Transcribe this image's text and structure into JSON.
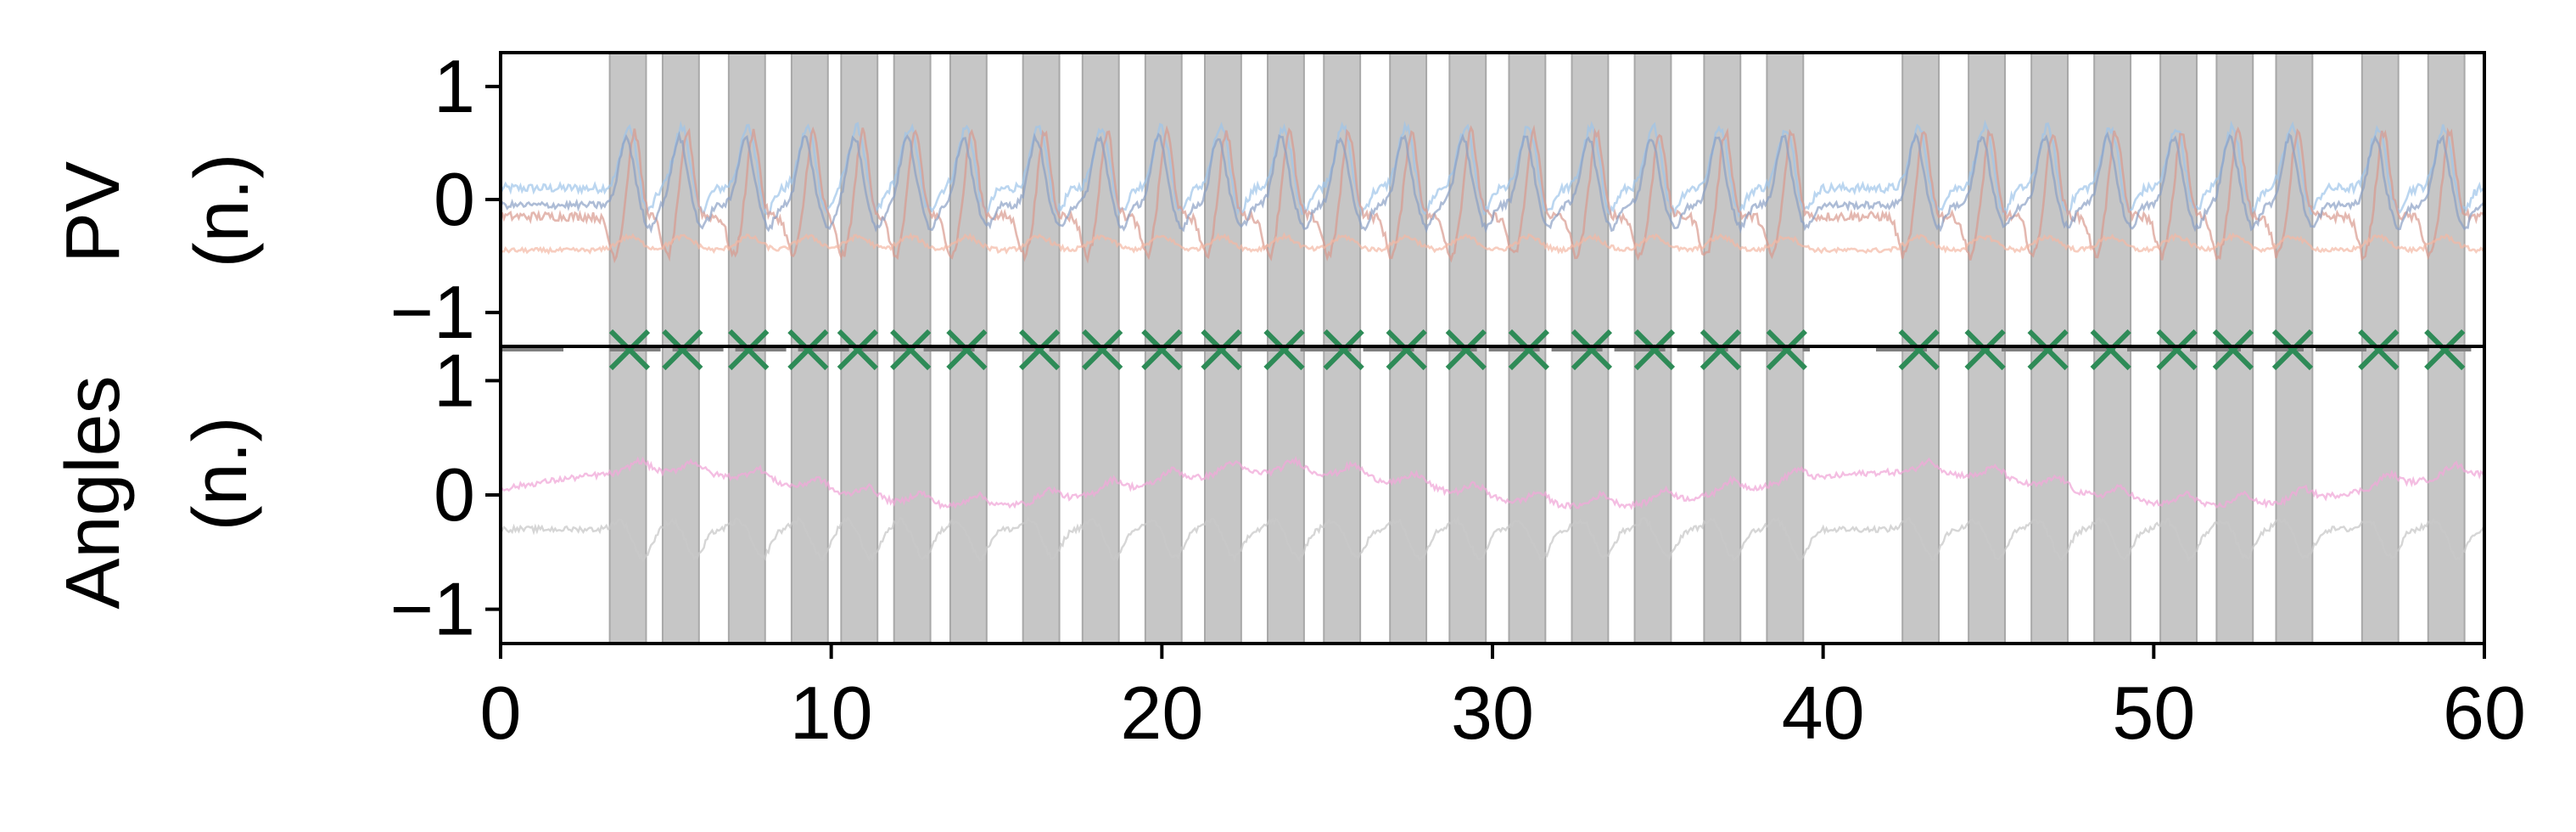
{
  "chart_data": [
    {
      "type": "line",
      "panel": "top",
      "ylabel_line1": "PV",
      "ylabel_line2": "(n.)",
      "ylim": [
        -1.3,
        1.3
      ],
      "yticks": [
        1,
        0,
        -1
      ],
      "ytick_labels": [
        "1",
        "0",
        "−1"
      ],
      "xlim": [
        0,
        60
      ],
      "shaded_regions_color": "#c6c6c6",
      "series_colors": [
        "#9ec5ea",
        "#d99a8f",
        "#f3b8a4",
        "#8a9fc4"
      ],
      "shaded_intervals": [
        [
          3.3,
          4.4
        ],
        [
          4.9,
          6.0
        ],
        [
          6.9,
          8.0
        ],
        [
          8.8,
          9.9
        ],
        [
          10.3,
          11.4
        ],
        [
          11.9,
          13.0
        ],
        [
          13.6,
          14.7
        ],
        [
          15.8,
          16.9
        ],
        [
          17.6,
          18.7
        ],
        [
          19.5,
          20.6
        ],
        [
          21.3,
          22.4
        ],
        [
          23.2,
          24.3
        ],
        [
          24.9,
          26.0
        ],
        [
          26.9,
          28.0
        ],
        [
          28.7,
          29.8
        ],
        [
          30.5,
          31.6
        ],
        [
          32.4,
          33.5
        ],
        [
          34.3,
          35.4
        ],
        [
          36.4,
          37.5
        ],
        [
          38.3,
          39.4
        ],
        [
          42.4,
          43.5
        ],
        [
          44.4,
          45.5
        ],
        [
          46.3,
          47.4
        ],
        [
          48.2,
          49.3
        ],
        [
          50.2,
          51.3
        ],
        [
          51.9,
          53.0
        ],
        [
          53.7,
          54.8
        ],
        [
          56.3,
          57.4
        ],
        [
          58.3,
          59.4
        ]
      ]
    },
    {
      "type": "line",
      "panel": "bottom",
      "ylabel_line1": "Angles",
      "ylabel_line2": "(n.)",
      "ylim": [
        -1.3,
        1.3
      ],
      "yticks": [
        1,
        0,
        -1
      ],
      "ytick_labels": [
        "1",
        "0",
        "−1"
      ],
      "xlim": [
        0,
        60
      ],
      "xticks": [
        0,
        10,
        20,
        30,
        40,
        50,
        60
      ],
      "xtick_labels": [
        "0",
        "10",
        "20",
        "30",
        "40",
        "50",
        "60"
      ],
      "series_colors": [
        "#f0a8d8",
        "#c8c8c8"
      ]
    },
    {
      "type": "scatter",
      "panel": "event-strip",
      "marker": "x",
      "marker_color": "#2e8b57",
      "segment_color": "#808080",
      "x": [
        3.9,
        5.5,
        7.5,
        9.3,
        10.8,
        12.4,
        14.1,
        16.3,
        18.2,
        20.0,
        21.8,
        23.7,
        25.5,
        27.4,
        29.2,
        31.1,
        33.0,
        34.9,
        36.9,
        38.9,
        42.9,
        44.9,
        46.8,
        48.7,
        50.7,
        52.4,
        54.2,
        56.8,
        58.8
      ],
      "segments": [
        [
          0.0,
          1.9
        ],
        [
          3.3,
          39.6
        ],
        [
          41.6,
          59.6
        ]
      ]
    }
  ]
}
